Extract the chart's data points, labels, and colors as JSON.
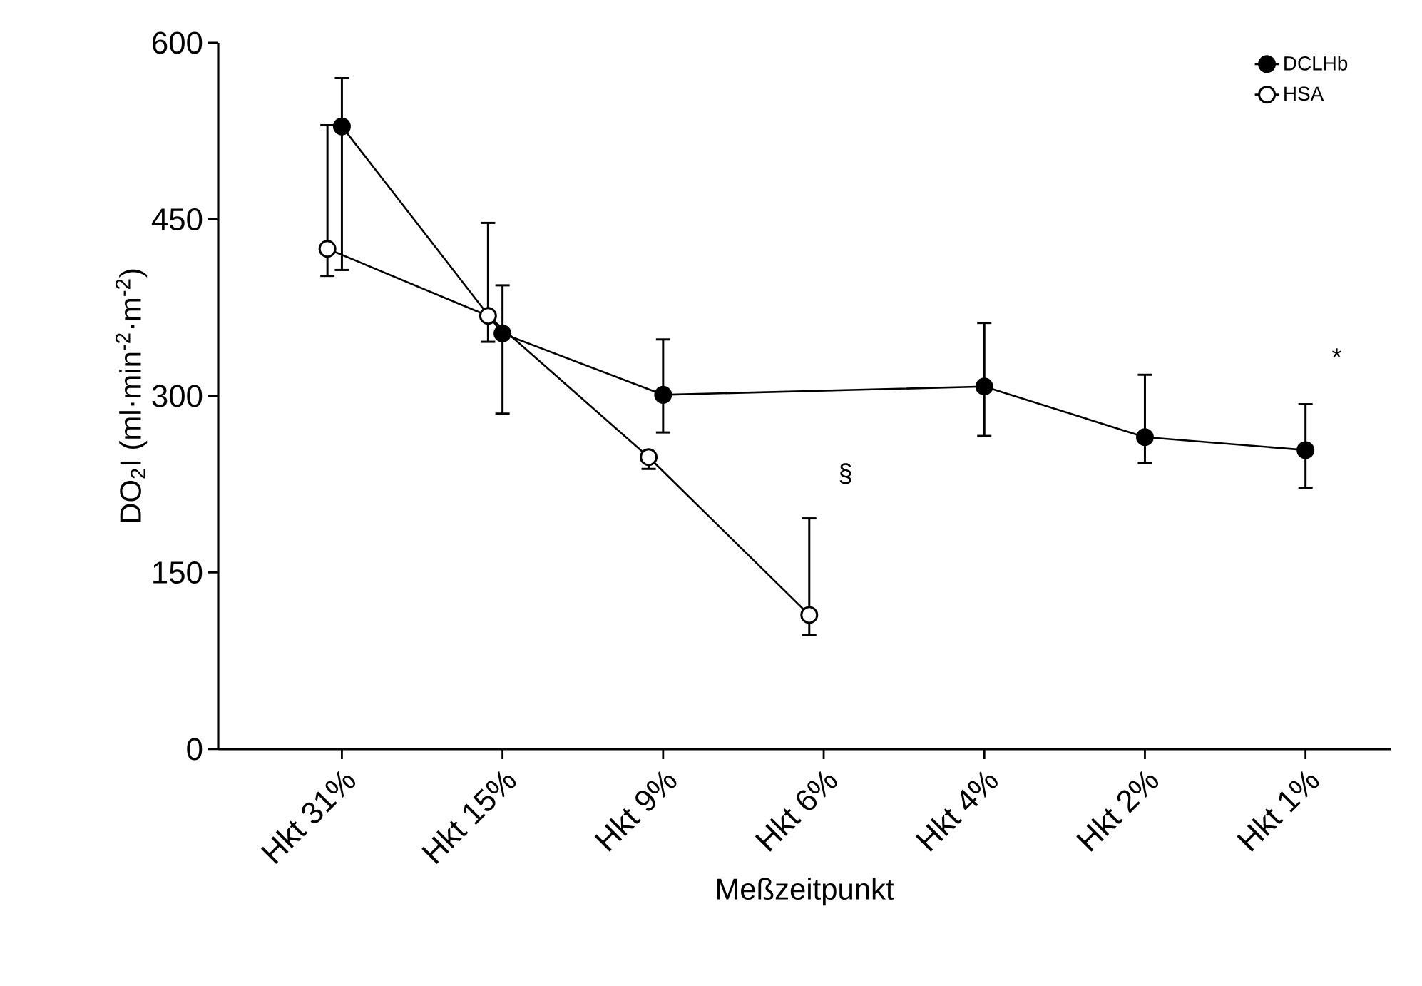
{
  "chart_data": {
    "type": "line",
    "xlabel": "Meßzeitpunkt",
    "ylabel": "DO$_{2}$I (ml·min$^{-2}$·m$^{-2}$)",
    "categories": [
      "Hkt 31%",
      "Hkt 15%",
      "Hkt 9%",
      "Hkt 6%",
      "Hkt 4%",
      "Hkt 2%",
      "Hkt 1%"
    ],
    "series": [
      {
        "name": "DCLHb",
        "color": "#000000",
        "values": [
          529,
          353,
          301,
          null,
          308,
          265,
          254
        ],
        "errors": [
          [
            407,
            570
          ],
          [
            285,
            394
          ],
          [
            269,
            348
          ],
          null,
          [
            266,
            362
          ],
          [
            243,
            318
          ],
          [
            222,
            293
          ]
        ]
      },
      {
        "name": "HSA",
        "color": "#ffffff",
        "values": [
          425,
          368,
          248,
          114,
          null,
          null,
          null
        ],
        "errors": [
          [
            402,
            530
          ],
          [
            346,
            447
          ],
          [
            238,
            248
          ],
          [
            97,
            196
          ],
          null,
          null,
          null
        ]
      }
    ],
    "ylim": [
      0,
      600
    ],
    "yticks": [
      0,
      150,
      300,
      450,
      600
    ],
    "annotations": [
      "§",
      "*"
    ],
    "legend": "top right",
    "marker": "circle",
    "line_style": "solid",
    "grid": false
  }
}
